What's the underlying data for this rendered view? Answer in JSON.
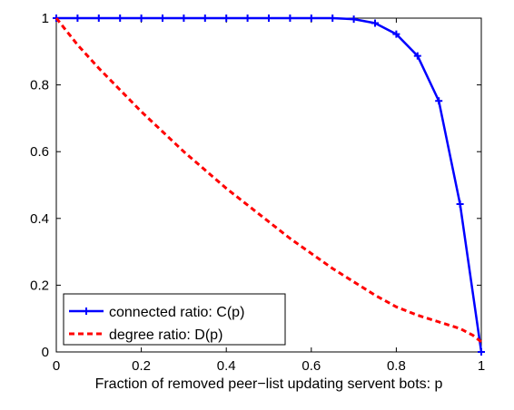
{
  "chart_data": {
    "type": "line",
    "title": "",
    "xlabel": "Fraction of removed peer−list updating servent bots: p",
    "ylabel": "",
    "xlim": [
      0,
      1
    ],
    "ylim": [
      0,
      1
    ],
    "xticks": [
      "0",
      "0.2",
      "0.4",
      "0.6",
      "0.8",
      "1"
    ],
    "yticks": [
      "0",
      "0.2",
      "0.4",
      "0.6",
      "0.8",
      "1"
    ],
    "grid": false,
    "legend_position": "bottom-left",
    "series": [
      {
        "name": "connected ratio: C(p)",
        "color": "#0000ff",
        "style": "solid",
        "marker": "plus",
        "x": [
          0,
          0.05,
          0.1,
          0.15,
          0.2,
          0.25,
          0.3,
          0.35,
          0.4,
          0.45,
          0.5,
          0.55,
          0.6,
          0.65,
          0.7,
          0.75,
          0.8,
          0.85,
          0.9,
          0.95,
          1.0
        ],
        "y": [
          1,
          1,
          1,
          1,
          1,
          1,
          1,
          1,
          1,
          1,
          1,
          1,
          1,
          1,
          0.997,
          0.985,
          0.952,
          0.887,
          0.752,
          0.443,
          0.0
        ]
      },
      {
        "name": "degree ratio: D(p)",
        "color": "#ff0000",
        "style": "dashed",
        "marker": "none",
        "x": [
          0,
          0.05,
          0.1,
          0.15,
          0.2,
          0.25,
          0.3,
          0.35,
          0.4,
          0.45,
          0.5,
          0.55,
          0.6,
          0.65,
          0.7,
          0.75,
          0.8,
          0.85,
          0.9,
          0.95,
          0.98,
          1.0
        ],
        "y": [
          1.0,
          0.92,
          0.85,
          0.785,
          0.72,
          0.66,
          0.6,
          0.545,
          0.49,
          0.44,
          0.39,
          0.34,
          0.295,
          0.25,
          0.21,
          0.17,
          0.135,
          0.11,
          0.09,
          0.07,
          0.05,
          0.03
        ]
      }
    ]
  }
}
